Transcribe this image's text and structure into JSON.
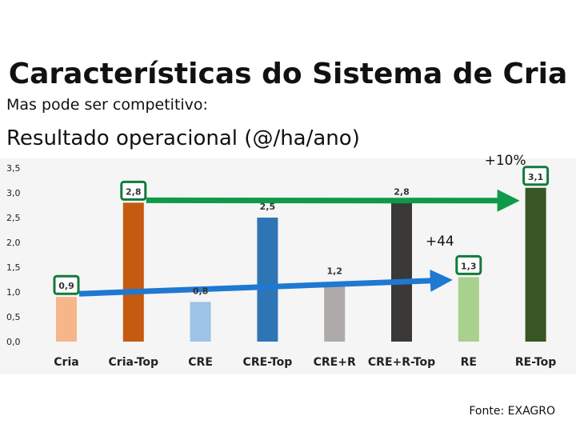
{
  "slide": {
    "title": "Características do Sistema de Cria",
    "subtitle": "Mas pode ser competitivo:",
    "section_title": "Resultado operacional (@/ha/ano)",
    "source": "Fonte: EXAGRO"
  },
  "chart_data": {
    "type": "bar",
    "title": "",
    "xlabel": "",
    "ylabel": "",
    "ylim": [
      0,
      3.5
    ],
    "yticks": [
      "0,0",
      "0,5",
      "1,0",
      "1,5",
      "2,0",
      "2,5",
      "3,0",
      "3,5"
    ],
    "grid": false,
    "categories": [
      "Cria",
      "Cria-Top",
      "CRE",
      "CRE-Top",
      "CRE+R",
      "CRE+R-Top",
      "RE",
      "RE-Top"
    ],
    "values": [
      0.9,
      2.8,
      0.8,
      2.5,
      1.2,
      2.8,
      1.3,
      3.1
    ],
    "data_labels": [
      "0,9",
      "2,8",
      "0,8",
      "2,5",
      "1,2",
      "2,8",
      "1,3",
      "3,1"
    ],
    "colors": [
      "#F7B58A",
      "#C55A11",
      "#9DC3E6",
      "#2E75B6",
      "#AEAAAA",
      "#3B3838",
      "#A9D18E",
      "#375623"
    ],
    "highlighted_labels": [
      0,
      1,
      6,
      7
    ],
    "highlight_color": "#127A3D",
    "annotations": [
      {
        "text": "+10%",
        "from_category": "Cria-Top",
        "to_category": "RE-Top",
        "color": "#0E9A48"
      },
      {
        "text": "+44",
        "from_category": "Cria",
        "to_category": "RE",
        "color": "#1F78D1"
      }
    ]
  }
}
